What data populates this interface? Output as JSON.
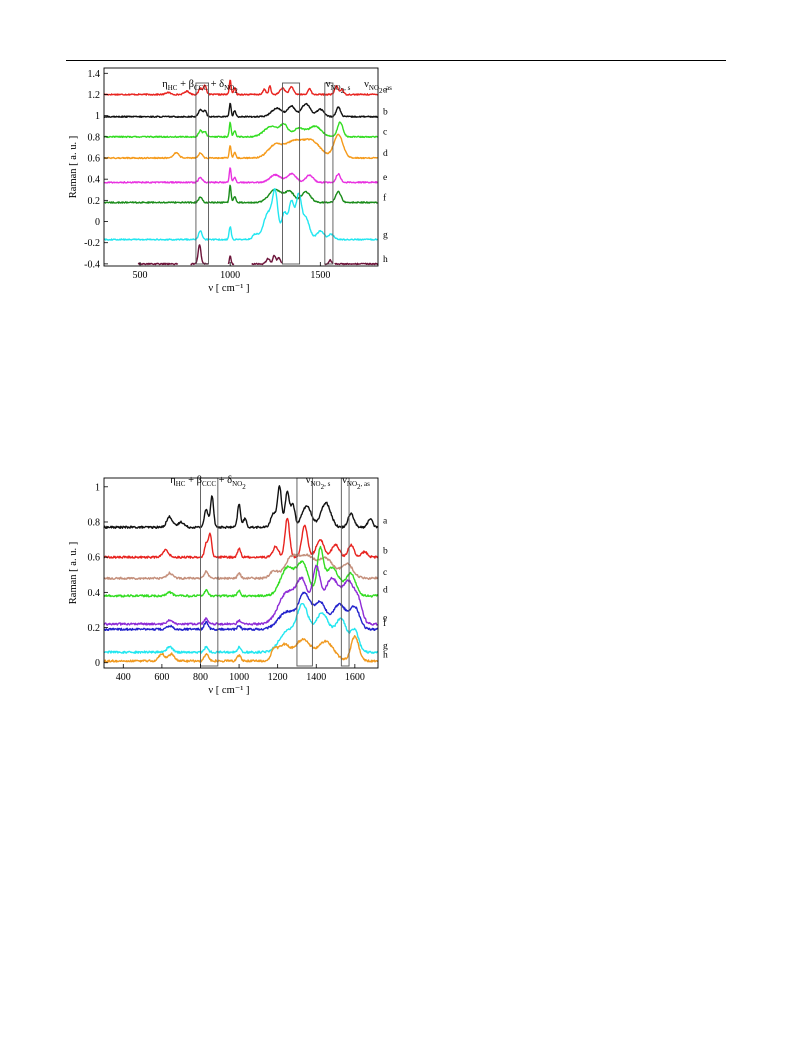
{
  "charts": [
    {
      "type": "line",
      "xlabel": "ν [ cm⁻¹ ]",
      "ylabel": "Raman [ a. u. ]",
      "xlim": [
        300,
        1820
      ],
      "ylim": [
        -0.42,
        1.45
      ],
      "xticks": [
        500,
        1000,
        1500
      ],
      "yticks": [
        1.4,
        1.2,
        1,
        0.8,
        0.6,
        0.4,
        0.2,
        0,
        -0.2,
        -0.4
      ],
      "ytick_labels": [
        "1.4",
        "1.2",
        "1",
        "0.8",
        "0.6",
        "0.4",
        "0.2",
        "0",
        "-0.2",
        "-0.4"
      ],
      "band_labels": [
        {
          "parts": [
            [
              "η",
              ""
            ],
            [
              "HC",
              "sub"
            ],
            [
              " + β",
              ""
            ],
            [
              "CCC",
              "sub"
            ],
            [
              " + δ",
              ""
            ],
            [
              "NO",
              "sub"
            ],
            [
              "2",
              "sub2"
            ]
          ]
        },
        {
          "parts": [
            [
              "ν",
              ""
            ],
            [
              "NO",
              "sub"
            ],
            [
              "2",
              "sub2"
            ],
            [
              ", s",
              "sub"
            ]
          ]
        },
        {
          "parts": [
            [
              "ν",
              ""
            ],
            [
              "NO",
              "sub"
            ],
            [
              "2",
              "sub2"
            ],
            [
              ", as",
              "sub"
            ]
          ]
        }
      ],
      "bands": [
        [
          810,
          880
        ],
        [
          1290,
          1385
        ],
        [
          1525,
          1570
        ]
      ],
      "series": [
        {
          "name": "a",
          "color": "#e8231f",
          "baseline": 1.2,
          "peaks": [
            [
              655,
              0.02,
              12
            ],
            [
              760,
              0.03,
              14
            ],
            [
              835,
              0.06,
              9
            ],
            [
              860,
              0.09,
              8
            ],
            [
              1000,
              0.14,
              5
            ],
            [
              1025,
              0.06,
              6
            ],
            [
              1190,
              0.05,
              8
            ],
            [
              1220,
              0.08,
              6
            ],
            [
              1290,
              0.06,
              14
            ],
            [
              1340,
              0.07,
              12
            ],
            [
              1440,
              0.06,
              8
            ],
            [
              1590,
              0.08,
              10
            ],
            [
              1620,
              0.05,
              8
            ]
          ]
        },
        {
          "name": "b",
          "color": "#111111",
          "baseline": 0.99,
          "peaks": [
            [
              835,
              0.07,
              10
            ],
            [
              860,
              0.06,
              8
            ],
            [
              1000,
              0.13,
              5
            ],
            [
              1025,
              0.06,
              6
            ],
            [
              1260,
              0.08,
              30
            ],
            [
              1340,
              0.1,
              20
            ],
            [
              1420,
              0.12,
              25
            ],
            [
              1500,
              0.07,
              20
            ],
            [
              1600,
              0.09,
              12
            ]
          ]
        },
        {
          "name": "c",
          "color": "#33dd22",
          "baseline": 0.8,
          "peaks": [
            [
              835,
              0.06,
              10
            ],
            [
              860,
              0.05,
              8
            ],
            [
              1000,
              0.14,
              5
            ],
            [
              1025,
              0.06,
              6
            ],
            [
              1230,
              0.1,
              40
            ],
            [
              1300,
              0.1,
              20
            ],
            [
              1380,
              0.08,
              30
            ],
            [
              1470,
              0.1,
              35
            ],
            [
              1610,
              0.14,
              15
            ]
          ]
        },
        {
          "name": "d",
          "color": "#f59a1a",
          "baseline": 0.6,
          "peaks": [
            [
              700,
              0.05,
              15
            ],
            [
              835,
              0.05,
              10
            ],
            [
              1000,
              0.12,
              5
            ],
            [
              1025,
              0.05,
              6
            ],
            [
              1250,
              0.12,
              40
            ],
            [
              1350,
              0.14,
              45
            ],
            [
              1450,
              0.16,
              50
            ],
            [
              1600,
              0.22,
              25
            ]
          ]
        },
        {
          "name": "e",
          "color": "#e831e0",
          "baseline": 0.37,
          "peaks": [
            [
              835,
              0.05,
              10
            ],
            [
              1000,
              0.14,
              5
            ],
            [
              1025,
              0.05,
              6
            ],
            [
              1250,
              0.07,
              30
            ],
            [
              1340,
              0.08,
              25
            ],
            [
              1440,
              0.07,
              20
            ],
            [
              1600,
              0.08,
              12
            ]
          ]
        },
        {
          "name": "f",
          "color": "#1a8c1a",
          "baseline": 0.18,
          "peaks": [
            [
              835,
              0.05,
              10
            ],
            [
              1000,
              0.16,
              5
            ],
            [
              1025,
              0.06,
              6
            ],
            [
              1250,
              0.12,
              35
            ],
            [
              1330,
              0.1,
              25
            ],
            [
              1420,
              0.1,
              25
            ],
            [
              1600,
              0.1,
              15
            ]
          ]
        },
        {
          "name": "g",
          "color": "#22e6f0",
          "baseline": -0.17,
          "peaks": [
            [
              835,
              0.08,
              10
            ],
            [
              1000,
              0.12,
              6
            ],
            [
              1140,
              0.05,
              15
            ],
            [
              1210,
              0.25,
              25
            ],
            [
              1250,
              0.4,
              15
            ],
            [
              1300,
              0.25,
              15
            ],
            [
              1340,
              0.35,
              15
            ],
            [
              1380,
              0.4,
              15
            ],
            [
              1420,
              0.2,
              20
            ],
            [
              1500,
              0.08,
              20
            ],
            [
              1560,
              0.05,
              15
            ]
          ]
        },
        {
          "name": "h",
          "color": "#6b1238",
          "baseline": -0.4,
          "segments": [
            [
              490,
              710
            ],
            [
              780,
              880
            ],
            [
              990,
              1020
            ],
            [
              1120,
              1290
            ],
            [
              1525,
              1570
            ],
            [
              1580,
              1820
            ]
          ],
          "peaks": [
            [
              830,
              0.18,
              8
            ],
            [
              1000,
              0.08,
              4
            ],
            [
              1210,
              0.05,
              10
            ],
            [
              1245,
              0.08,
              8
            ],
            [
              1270,
              0.06,
              8
            ],
            [
              1555,
              0.04,
              6
            ]
          ]
        }
      ]
    },
    {
      "type": "line",
      "xlabel": "ν [ cm⁻¹ ]",
      "ylabel": "Raman [ a. u. ]",
      "xlim": [
        300,
        1720
      ],
      "ylim": [
        -0.03,
        1.05
      ],
      "xticks": [
        400,
        600,
        800,
        1000,
        1200,
        1400,
        1600
      ],
      "yticks": [
        1,
        0.8,
        0.6,
        0.4,
        0.2,
        0
      ],
      "ytick_labels": [
        "1",
        "0.8",
        "0.6",
        "0.4",
        "0.2",
        "0"
      ],
      "band_labels": [
        {
          "parts": [
            [
              "η",
              ""
            ],
            [
              "HC",
              "sub"
            ],
            [
              " + β",
              ""
            ],
            [
              "CCC",
              "sub"
            ],
            [
              " + δ",
              ""
            ],
            [
              "NO",
              "sub"
            ],
            [
              "2",
              "sub2"
            ]
          ]
        },
        {
          "parts": [
            [
              "ν",
              ""
            ],
            [
              "NO",
              "sub"
            ],
            [
              "2",
              "sub2"
            ],
            [
              ", s",
              "sub"
            ]
          ]
        },
        {
          "parts": [
            [
              "ν",
              ""
            ],
            [
              "NO",
              "sub"
            ],
            [
              "2",
              "sub2"
            ],
            [
              ", as",
              "sub"
            ]
          ]
        }
      ],
      "bands": [
        [
          800,
          890
        ],
        [
          1300,
          1380
        ],
        [
          1530,
          1570
        ]
      ],
      "series": [
        {
          "name": "a",
          "color": "#111111",
          "baseline": 0.77,
          "peaks": [
            [
              640,
              0.06,
              15
            ],
            [
              700,
              0.03,
              15
            ],
            [
              830,
              0.1,
              10
            ],
            [
              860,
              0.18,
              8
            ],
            [
              1000,
              0.13,
              8
            ],
            [
              1030,
              0.05,
              8
            ],
            [
              1180,
              0.08,
              15
            ],
            [
              1210,
              0.22,
              10
            ],
            [
              1250,
              0.2,
              12
            ],
            [
              1280,
              0.12,
              10
            ],
            [
              1350,
              0.12,
              25
            ],
            [
              1450,
              0.14,
              25
            ],
            [
              1580,
              0.08,
              15
            ],
            [
              1680,
              0.05,
              12
            ]
          ]
        },
        {
          "name": "b",
          "color": "#e8231f",
          "baseline": 0.6,
          "peaks": [
            [
              620,
              0.04,
              15
            ],
            [
              830,
              0.08,
              8
            ],
            [
              850,
              0.13,
              8
            ],
            [
              1000,
              0.05,
              8
            ],
            [
              1190,
              0.06,
              15
            ],
            [
              1250,
              0.22,
              12
            ],
            [
              1340,
              0.18,
              15
            ],
            [
              1420,
              0.1,
              20
            ],
            [
              1500,
              0.07,
              20
            ],
            [
              1580,
              0.07,
              15
            ],
            [
              1650,
              0.03,
              15
            ]
          ]
        },
        {
          "name": "c",
          "color": "#c48f7b",
          "baseline": 0.48,
          "peaks": [
            [
              640,
              0.03,
              15
            ],
            [
              830,
              0.04,
              10
            ],
            [
              1000,
              0.03,
              8
            ],
            [
              1180,
              0.04,
              20
            ],
            [
              1270,
              0.11,
              35
            ],
            [
              1350,
              0.12,
              40
            ],
            [
              1450,
              0.11,
              40
            ],
            [
              1560,
              0.08,
              30
            ]
          ]
        },
        {
          "name": "d",
          "color": "#33dd22",
          "baseline": 0.38,
          "peaks": [
            [
              640,
              0.02,
              15
            ],
            [
              830,
              0.03,
              10
            ],
            [
              1000,
              0.03,
              8
            ],
            [
              1250,
              0.16,
              35
            ],
            [
              1330,
              0.18,
              30
            ],
            [
              1420,
              0.22,
              15
            ],
            [
              1480,
              0.16,
              40
            ],
            [
              1580,
              0.12,
              25
            ]
          ]
        },
        {
          "name": "e",
          "color": "#8e2bd6",
          "baseline": 0.22,
          "peaks": [
            [
              640,
              0.02,
              15
            ],
            [
              830,
              0.03,
              10
            ],
            [
              1000,
              0.02,
              8
            ],
            [
              1250,
              0.18,
              45
            ],
            [
              1330,
              0.22,
              30
            ],
            [
              1400,
              0.28,
              20
            ],
            [
              1480,
              0.26,
              40
            ],
            [
              1570,
              0.22,
              30
            ],
            [
              1620,
              0.1,
              20
            ]
          ]
        },
        {
          "name": "f",
          "color": "#2222cc",
          "baseline": 0.19,
          "peaks": [
            [
              640,
              0.02,
              15
            ],
            [
              830,
              0.04,
              10
            ],
            [
              1000,
              0.02,
              8
            ],
            [
              1250,
              0.1,
              45
            ],
            [
              1340,
              0.19,
              30
            ],
            [
              1420,
              0.15,
              30
            ],
            [
              1520,
              0.14,
              35
            ],
            [
              1600,
              0.12,
              25
            ]
          ]
        },
        {
          "name": "g",
          "color": "#22e6f0",
          "baseline": 0.06,
          "peaks": [
            [
              640,
              0.03,
              15
            ],
            [
              830,
              0.03,
              10
            ],
            [
              1000,
              0.03,
              8
            ],
            [
              1250,
              0.12,
              40
            ],
            [
              1330,
              0.25,
              30
            ],
            [
              1430,
              0.22,
              40
            ],
            [
              1530,
              0.18,
              30
            ],
            [
              1600,
              0.12,
              20
            ]
          ]
        },
        {
          "name": "h",
          "color": "#f0991f",
          "baseline": 0.01,
          "peaks": [
            [
              600,
              0.04,
              15
            ],
            [
              650,
              0.04,
              15
            ],
            [
              830,
              0.04,
              10
            ],
            [
              1000,
              0.03,
              10
            ],
            [
              1180,
              0.05,
              15
            ],
            [
              1230,
              0.09,
              30
            ],
            [
              1330,
              0.12,
              40
            ],
            [
              1450,
              0.11,
              40
            ],
            [
              1600,
              0.14,
              20
            ]
          ]
        }
      ]
    }
  ]
}
